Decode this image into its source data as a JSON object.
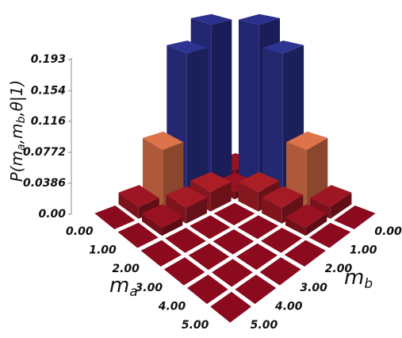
{
  "chart_data": {
    "type": "bar3d",
    "xlabel": [
      "m",
      "a"
    ],
    "ylabel": [
      "m",
      "b"
    ],
    "zlabel": [
      "P(m",
      "a",
      ",m",
      "b",
      ",θ|1)"
    ],
    "x": [
      0,
      1,
      2,
      3,
      4,
      5
    ],
    "y": [
      0,
      1,
      2,
      3,
      4,
      5
    ],
    "xlim": [
      0,
      5
    ],
    "ylim": [
      0,
      5
    ],
    "xticks": [
      {
        "value": 0,
        "label": "0.00"
      },
      {
        "value": 1,
        "label": "1.00"
      },
      {
        "value": 2,
        "label": "2.00"
      },
      {
        "value": 3,
        "label": "3.00"
      },
      {
        "value": 4,
        "label": "4.00"
      },
      {
        "value": 5,
        "label": "5.00"
      }
    ],
    "yticks": [
      {
        "value": 0,
        "label": "0.00"
      },
      {
        "value": 1,
        "label": "1.00"
      },
      {
        "value": 2,
        "label": "2.00"
      },
      {
        "value": 3,
        "label": "3.00"
      },
      {
        "value": 4,
        "label": "4.00"
      },
      {
        "value": 5,
        "label": "5.00"
      }
    ],
    "zlim": [
      0,
      0.193
    ],
    "zticks": [
      {
        "value": 0,
        "label": "0.00"
      },
      0.0386,
      0.0772,
      0.116,
      0.154,
      0.193
    ],
    "values": [
      [
        0.01,
        0.22,
        0.19,
        0.075,
        0.015,
        0
      ],
      [
        0.22,
        0.01,
        0.025,
        0.02,
        0.01,
        0
      ],
      [
        0.19,
        0.025,
        0,
        0,
        0,
        0
      ],
      [
        0.075,
        0.02,
        0,
        0,
        0,
        0
      ],
      [
        0.015,
        0.01,
        0,
        0,
        0,
        0
      ],
      [
        0,
        0,
        0,
        0,
        0,
        0
      ]
    ],
    "colormap": [
      "#8b0a1e",
      "#c8302e",
      "#f0a860",
      "#4a78c4",
      "#2b2f8e"
    ]
  }
}
